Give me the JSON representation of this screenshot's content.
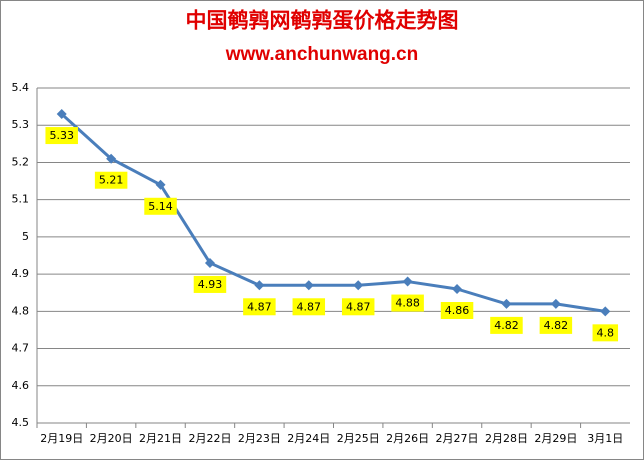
{
  "chart_data": {
    "type": "line",
    "title": "中国鹌鹑网鹌鹑蛋价格走势图",
    "subtitle": "www.anchunwang.cn",
    "categories": [
      "2月19日",
      "2月20日",
      "2月21日",
      "2月22日",
      "2月23日",
      "2月24日",
      "2月25日",
      "2月26日",
      "2月27日",
      "2月28日",
      "2月29日",
      "3月1日"
    ],
    "values": [
      5.33,
      5.21,
      5.14,
      4.93,
      4.87,
      4.87,
      4.87,
      4.88,
      4.86,
      4.82,
      4.82,
      4.8
    ],
    "color": "#4a7ebb",
    "ylim": [
      4.5,
      5.4
    ],
    "yticks": [
      4.5,
      4.6,
      4.7,
      4.8,
      4.9,
      5,
      5.1,
      5.2,
      5.3,
      5.4
    ],
    "grid": true
  }
}
